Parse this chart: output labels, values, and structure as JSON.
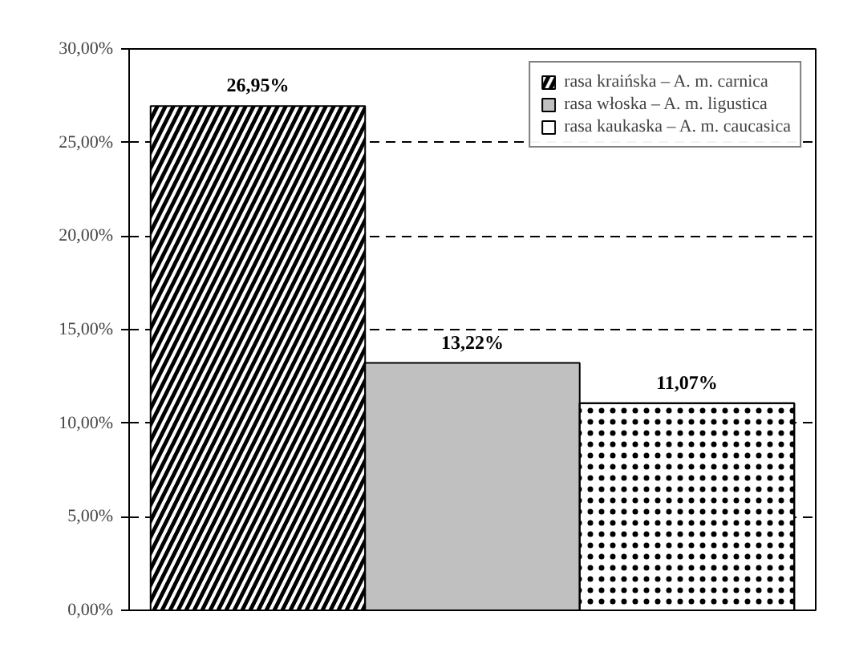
{
  "chart_data": {
    "type": "bar",
    "categories": [
      null
    ],
    "series": [
      {
        "name": "rasa kraińska – A. m. carnica",
        "color": "#000000",
        "values": [
          26.95
        ],
        "value_labels": [
          "26,95%"
        ]
      },
      {
        "name": "rasa włoska – A. m. ligustica",
        "color": "#c0c0c0",
        "values": [
          13.22
        ],
        "value_labels": [
          "13,22%"
        ]
      },
      {
        "name": "rasa kaukaska – A. m. caucasica",
        "color": "#ffffff",
        "values": [
          11.07
        ],
        "value_labels": [
          "11,07%"
        ]
      }
    ],
    "ylim": [
      0,
      30
    ],
    "yticks": [
      {
        "value": 0,
        "label": "0,00%"
      },
      {
        "value": 5,
        "label": "5,00%"
      },
      {
        "value": 10,
        "label": "10,00%"
      },
      {
        "value": 15,
        "label": "15,00%"
      },
      {
        "value": 20,
        "label": "20,00%"
      },
      {
        "value": 25,
        "label": "25,00%"
      },
      {
        "value": 30,
        "label": "30,00%"
      }
    ],
    "grid": "y",
    "legend": "top right"
  }
}
